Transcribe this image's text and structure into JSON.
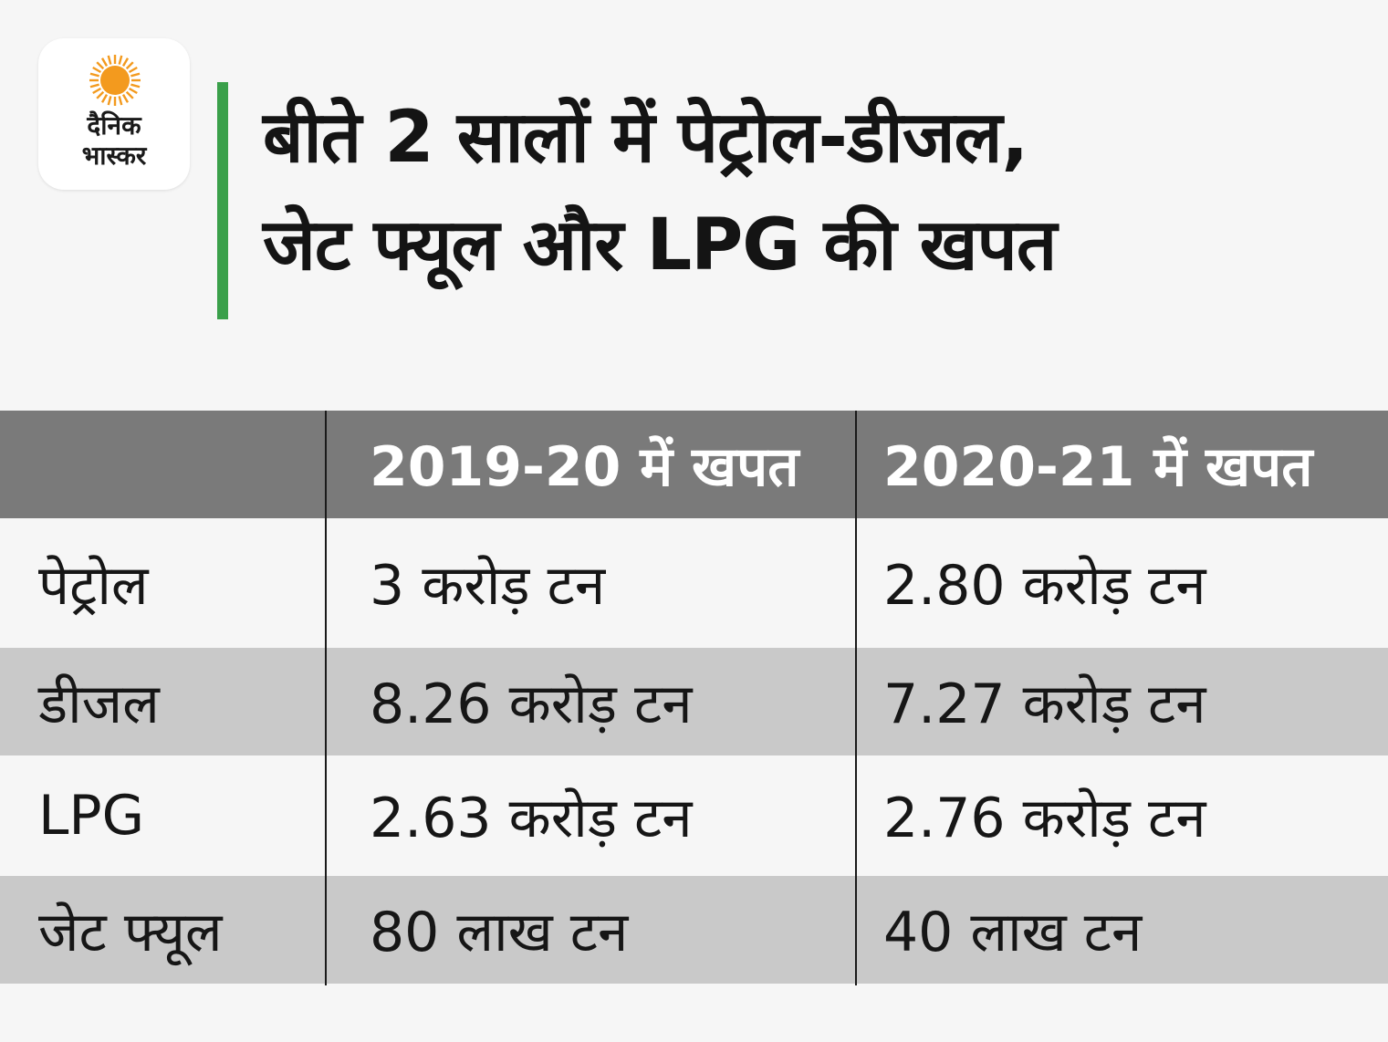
{
  "brand": {
    "logo_line1": "दैनिक",
    "logo_line2": "भास्कर",
    "sun_color": "#f39a1e",
    "accent_color": "#3aa04a"
  },
  "header": {
    "title_line1": "बीते 2 सालों में पेट्रोल-डीजल,",
    "title_line2": "जेट फ्यूल और LPG की खपत"
  },
  "chart_data": {
    "type": "table",
    "columns": [
      "",
      "2019-20 में खपत",
      "2020-21 में खपत"
    ],
    "rows": [
      [
        "पेट्रोल",
        "3 करोड़ टन",
        "2.80 करोड़ टन"
      ],
      [
        "डीजल",
        "8.26 करोड़ टन",
        "7.27 करोड़ टन"
      ],
      [
        "LPG",
        "2.63 करोड़ टन",
        "2.76 करोड़ टन"
      ],
      [
        "जेट फ्यूल",
        "80 लाख टन",
        "40 लाख टन"
      ]
    ]
  }
}
